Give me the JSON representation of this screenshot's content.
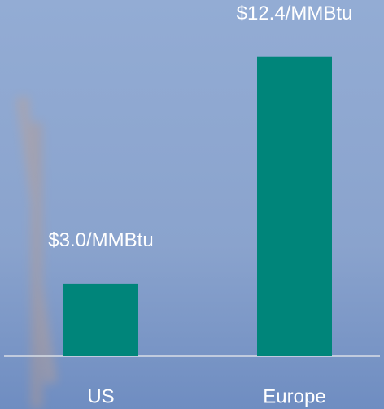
{
  "chart_data": {
    "type": "bar",
    "categories": [
      "US",
      "Europe"
    ],
    "values": [
      3.0,
      12.4
    ],
    "value_labels": [
      "$3.0/MMBtu",
      "$12.4/MMBtu"
    ],
    "color": "#00857a"
  }
}
